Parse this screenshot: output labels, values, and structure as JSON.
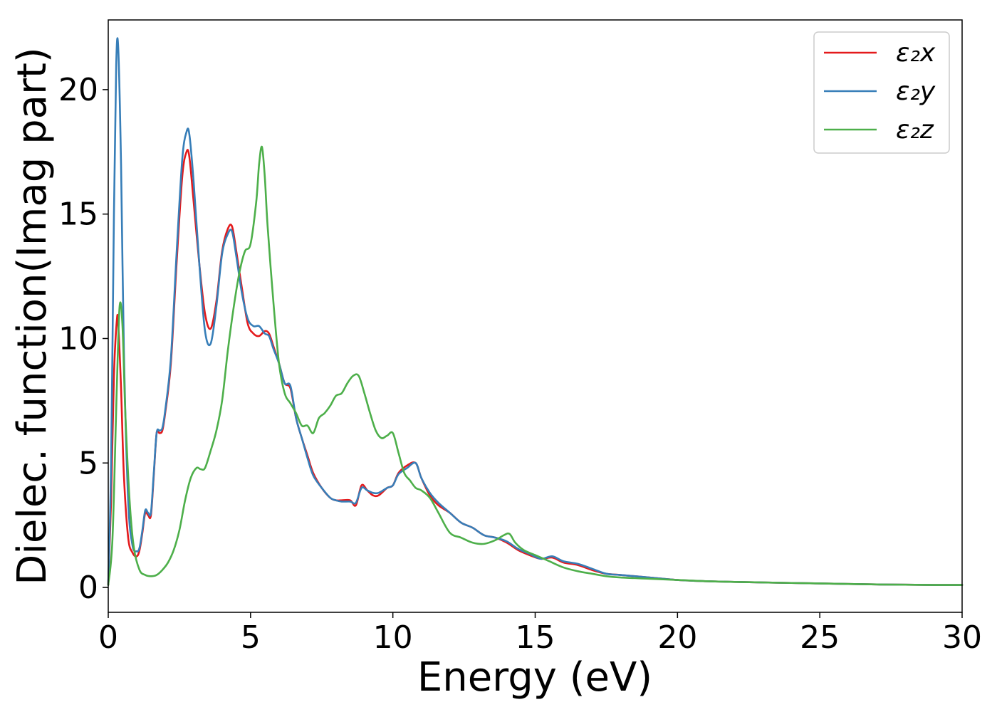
{
  "chart_data": {
    "type": "line",
    "title": "",
    "xlabel": "Energy (eV)",
    "ylabel": "Dielec. function(Imag part)",
    "xlim": [
      0,
      30
    ],
    "ylim": [
      -1.0,
      22.8
    ],
    "xticks": [
      0,
      5,
      10,
      15,
      20,
      25,
      30
    ],
    "yticks": [
      0,
      5,
      10,
      15,
      20
    ],
    "grid": false,
    "legend_position": "top-right",
    "series": [
      {
        "name": "ε₂x",
        "color": "#e41a1c",
        "x": [
          0,
          0.1,
          0.2,
          0.3,
          0.35,
          0.45,
          0.55,
          0.7,
          0.85,
          1.0,
          1.1,
          1.2,
          1.3,
          1.4,
          1.5,
          1.6,
          1.7,
          1.8,
          1.9,
          2.0,
          2.2,
          2.4,
          2.6,
          2.75,
          2.85,
          3.0,
          3.2,
          3.4,
          3.6,
          3.8,
          4.0,
          4.2,
          4.35,
          4.5,
          4.7,
          4.9,
          5.1,
          5.3,
          5.5,
          5.65,
          5.8,
          6.0,
          6.2,
          6.4,
          6.6,
          6.8,
          7.0,
          7.2,
          7.5,
          7.8,
          8.0,
          8.2,
          8.5,
          8.7,
          8.9,
          9.1,
          9.3,
          9.5,
          9.8,
          10.0,
          10.2,
          10.5,
          10.8,
          11.0,
          11.3,
          11.6,
          12.0,
          12.4,
          12.8,
          13.2,
          13.6,
          14.0,
          14.4,
          14.8,
          15.2,
          15.6,
          16.0,
          16.5,
          17.0,
          17.5,
          18.0,
          19.0,
          20.0,
          21.0,
          22.0,
          23.0,
          24.0,
          25.0,
          26.0,
          27.0,
          28.0,
          29.0,
          30.0
        ],
        "y": [
          0.1,
          3.5,
          8.5,
          10.7,
          10.6,
          8.0,
          4.5,
          2.0,
          1.4,
          1.25,
          1.5,
          2.2,
          3.0,
          2.9,
          2.9,
          4.5,
          6.2,
          6.2,
          6.3,
          7.0,
          9.0,
          13.0,
          16.5,
          17.5,
          17.3,
          15.5,
          13.0,
          11.0,
          10.4,
          11.5,
          13.5,
          14.4,
          14.5,
          13.5,
          12.0,
          10.6,
          10.2,
          10.1,
          10.3,
          10.2,
          9.7,
          9.0,
          8.2,
          8.0,
          6.8,
          6.0,
          5.3,
          4.6,
          4.0,
          3.6,
          3.5,
          3.5,
          3.5,
          3.3,
          4.1,
          3.9,
          3.7,
          3.7,
          4.0,
          4.1,
          4.6,
          4.9,
          5.0,
          4.4,
          3.7,
          3.3,
          3.0,
          2.6,
          2.4,
          2.1,
          2.0,
          1.8,
          1.5,
          1.3,
          1.15,
          1.2,
          1.0,
          0.9,
          0.7,
          0.55,
          0.5,
          0.4,
          0.3,
          0.25,
          0.22,
          0.2,
          0.18,
          0.16,
          0.14,
          0.12,
          0.11,
          0.1,
          0.1
        ]
      },
      {
        "name": "ε₂y",
        "color": "#377eb8",
        "x": [
          0,
          0.1,
          0.2,
          0.28,
          0.35,
          0.45,
          0.55,
          0.7,
          0.85,
          1.0,
          1.1,
          1.2,
          1.3,
          1.4,
          1.5,
          1.6,
          1.7,
          1.8,
          1.9,
          2.0,
          2.2,
          2.4,
          2.6,
          2.75,
          2.85,
          3.0,
          3.2,
          3.4,
          3.6,
          3.8,
          4.0,
          4.2,
          4.35,
          4.5,
          4.7,
          4.9,
          5.1,
          5.3,
          5.5,
          5.65,
          5.8,
          6.0,
          6.2,
          6.4,
          6.6,
          6.8,
          7.0,
          7.2,
          7.5,
          7.8,
          8.0,
          8.2,
          8.5,
          8.7,
          8.9,
          9.1,
          9.3,
          9.5,
          9.8,
          10.0,
          10.2,
          10.5,
          10.8,
          11.0,
          11.3,
          11.6,
          12.0,
          12.4,
          12.8,
          13.2,
          13.6,
          14.0,
          14.4,
          14.8,
          15.2,
          15.6,
          16.0,
          16.5,
          17.0,
          17.5,
          18.0,
          19.0,
          20.0,
          21.0,
          22.0,
          23.0,
          24.0,
          25.0,
          26.0,
          27.0,
          28.0,
          29.0,
          30.0
        ],
        "y": [
          0.1,
          5.0,
          15.0,
          21.0,
          21.7,
          17.0,
          9.5,
          3.5,
          1.7,
          1.45,
          1.6,
          2.3,
          3.1,
          3.0,
          3.0,
          4.6,
          6.2,
          6.3,
          6.4,
          7.1,
          9.2,
          13.4,
          17.2,
          18.3,
          18.2,
          16.3,
          13.0,
          10.3,
          9.8,
          11.3,
          13.4,
          14.2,
          14.3,
          13.3,
          11.8,
          10.8,
          10.5,
          10.5,
          10.2,
          10.1,
          9.6,
          9.0,
          8.2,
          8.1,
          6.8,
          6.0,
          5.2,
          4.5,
          4.0,
          3.6,
          3.5,
          3.45,
          3.45,
          3.4,
          4.0,
          3.9,
          3.8,
          3.8,
          4.0,
          4.1,
          4.55,
          4.8,
          5.0,
          4.4,
          3.8,
          3.4,
          3.0,
          2.6,
          2.4,
          2.1,
          2.0,
          1.85,
          1.55,
          1.35,
          1.15,
          1.25,
          1.05,
          0.95,
          0.75,
          0.55,
          0.5,
          0.4,
          0.3,
          0.25,
          0.22,
          0.2,
          0.18,
          0.16,
          0.14,
          0.12,
          0.11,
          0.1,
          0.1
        ]
      },
      {
        "name": "ε₂z",
        "color": "#4daf4a",
        "x": [
          0,
          0.15,
          0.3,
          0.4,
          0.5,
          0.6,
          0.75,
          0.9,
          1.1,
          1.3,
          1.5,
          1.7,
          1.9,
          2.1,
          2.3,
          2.5,
          2.7,
          2.9,
          3.1,
          3.25,
          3.4,
          3.6,
          3.8,
          4.0,
          4.2,
          4.4,
          4.6,
          4.8,
          5.0,
          5.2,
          5.3,
          5.4,
          5.5,
          5.6,
          5.8,
          6.0,
          6.2,
          6.4,
          6.6,
          6.8,
          7.0,
          7.2,
          7.4,
          7.6,
          7.8,
          8.0,
          8.2,
          8.4,
          8.6,
          8.8,
          9.0,
          9.2,
          9.4,
          9.6,
          9.8,
          10.0,
          10.2,
          10.4,
          10.6,
          10.8,
          11.0,
          11.3,
          11.6,
          12.0,
          12.4,
          12.8,
          13.2,
          13.6,
          13.9,
          14.1,
          14.3,
          14.6,
          15.0,
          15.5,
          16.0,
          16.5,
          17.0,
          17.5,
          18.0,
          19.0,
          20.0,
          21.0,
          22.0,
          23.0,
          24.0,
          25.0,
          26.0,
          27.0,
          28.0,
          29.0,
          30.0
        ],
        "y": [
          0.1,
          2.0,
          8.0,
          11.3,
          10.5,
          7.0,
          3.5,
          1.6,
          0.7,
          0.5,
          0.45,
          0.5,
          0.7,
          1.0,
          1.5,
          2.3,
          3.5,
          4.4,
          4.8,
          4.75,
          4.8,
          5.5,
          6.3,
          7.5,
          9.5,
          11.2,
          12.6,
          13.5,
          13.8,
          15.5,
          17.0,
          17.7,
          16.5,
          14.5,
          11.5,
          9.0,
          7.8,
          7.4,
          7.0,
          6.5,
          6.5,
          6.2,
          6.8,
          7.0,
          7.3,
          7.7,
          7.8,
          8.2,
          8.5,
          8.5,
          7.8,
          7.0,
          6.3,
          6.0,
          6.1,
          6.2,
          5.4,
          4.6,
          4.3,
          4.0,
          3.9,
          3.6,
          3.0,
          2.2,
          2.0,
          1.8,
          1.75,
          1.9,
          2.1,
          2.15,
          1.8,
          1.5,
          1.3,
          1.05,
          0.8,
          0.65,
          0.55,
          0.45,
          0.4,
          0.35,
          0.3,
          0.25,
          0.22,
          0.2,
          0.18,
          0.16,
          0.14,
          0.12,
          0.11,
          0.1,
          0.1
        ]
      }
    ]
  }
}
